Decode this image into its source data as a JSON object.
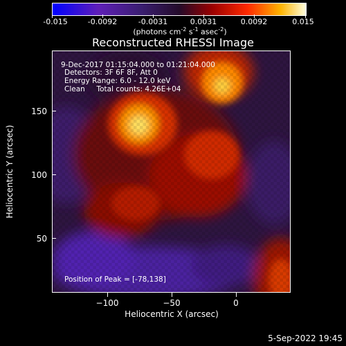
{
  "colorbar": {
    "tick_labels": [
      "-0.015",
      "-0.0092",
      "-0.0031",
      "0.0031",
      "0.0092",
      "0.015"
    ],
    "unit_label": {
      "a": "(photons cm",
      "b": "-2",
      "c": " s",
      "d": "-1",
      "e": " asec",
      "f": "-2",
      "g": ")"
    }
  },
  "title": "Reconstructed RHESSI Image",
  "overlay": {
    "line1": "9-Dec-2017 01:15:04.000 to 01:21:04.000",
    "line2": "Detectors: 3F 6F 8F, Att 0",
    "line3": "Energy Range: 6.0 - 12.0 keV",
    "line4": "Clean     Total counts: 4.26E+04",
    "peak": "Position of Peak = [-78,138]"
  },
  "axes": {
    "x_title": "Heliocentric X (arcsec)",
    "y_title": "Heliocentric Y (arcsec)",
    "x_ticks": [
      "−100",
      "−50",
      "0"
    ],
    "y_ticks": [
      "150",
      "100",
      "50"
    ]
  },
  "footer_timestamp": "5-Sep-2022 19:45",
  "colors": {
    "background": "#000000",
    "foreground": "#ffffff"
  }
}
